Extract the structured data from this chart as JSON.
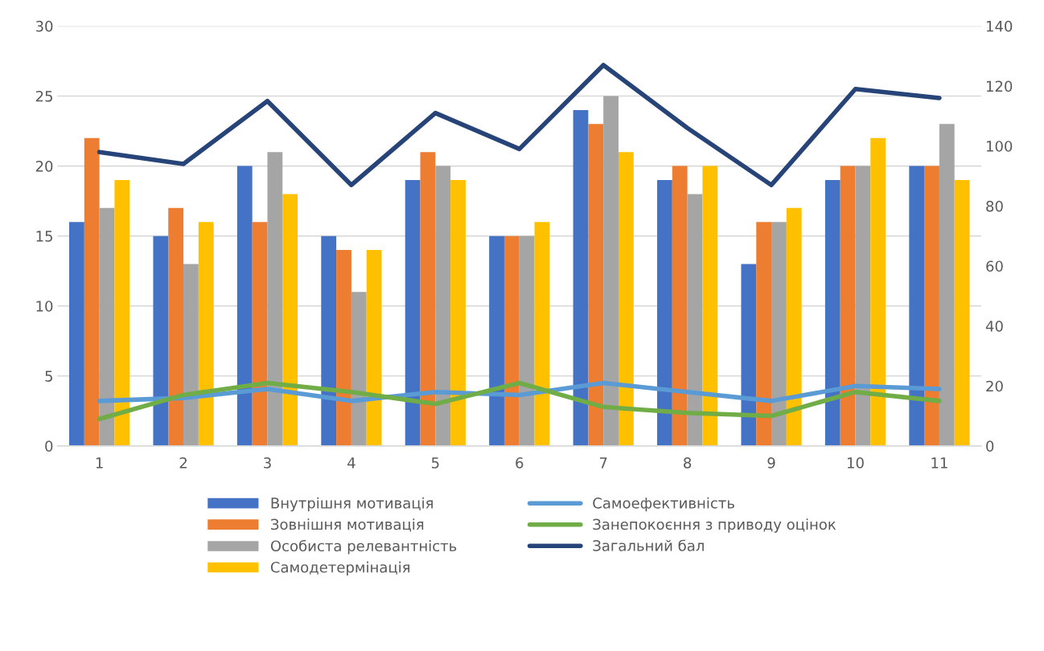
{
  "chart_data": {
    "type": "bar",
    "categories": [
      "1",
      "2",
      "3",
      "4",
      "5",
      "6",
      "7",
      "8",
      "9",
      "10",
      "11"
    ],
    "ylim": [
      0,
      30
    ],
    "yticks": [
      0,
      5,
      10,
      15,
      20,
      25,
      30
    ],
    "y2lim": [
      0,
      140
    ],
    "y2ticks": [
      0,
      20,
      40,
      60,
      80,
      100,
      120,
      140
    ],
    "grid": "y",
    "legend": "bottom",
    "series": [
      {
        "name": "Внутрішня мотивація",
        "color": "#4472c4",
        "values": [
          16,
          15,
          20,
          15,
          19,
          15,
          24,
          19,
          13,
          19,
          20
        ]
      },
      {
        "name": "Зовнішня мотивація",
        "color": "#ed7d31",
        "values": [
          22,
          17,
          16,
          14,
          21,
          15,
          23,
          20,
          16,
          20,
          20
        ]
      },
      {
        "name": "Особиста релевантність",
        "color": "#a5a5a5",
        "values": [
          17,
          13,
          21,
          11,
          20,
          15,
          25,
          18,
          16,
          20,
          23
        ]
      },
      {
        "name": "Самодетермінація",
        "color": "#ffc000",
        "values": [
          19,
          16,
          18,
          14,
          19,
          16,
          21,
          20,
          17,
          22,
          19
        ]
      },
      {
        "name": "Самоефективність",
        "type": "line",
        "axis": "y2",
        "color": "#5b9bd5",
        "values": [
          15,
          16,
          19,
          15,
          18,
          17,
          21,
          18,
          15,
          20,
          19
        ]
      },
      {
        "name": "Занепокоєння з приводу оцінок",
        "type": "line",
        "axis": "y2",
        "color": "#70ad47",
        "values": [
          9,
          17,
          21,
          18,
          14,
          21,
          13,
          11,
          10,
          18,
          15
        ]
      },
      {
        "name": "Загальний бал",
        "type": "line",
        "axis": "y2",
        "color": "#264478",
        "values": [
          98,
          94,
          115,
          87,
          111,
          99,
          127,
          106,
          87,
          119,
          116
        ]
      }
    ]
  }
}
